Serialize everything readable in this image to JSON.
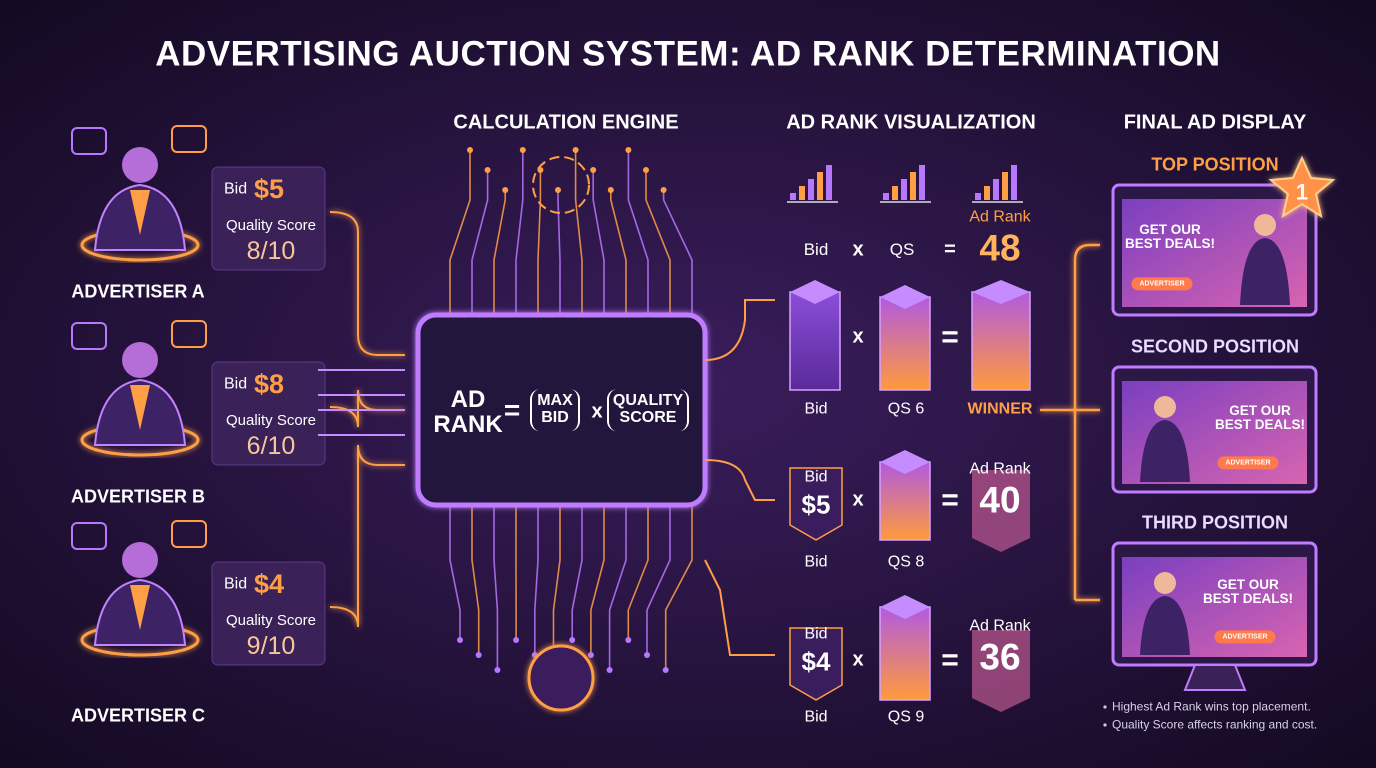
{
  "title": "ADVERTISING AUCTION SYSTEM: AD RANK DETERMINATION",
  "advertisers": [
    {
      "name": "ADVERTISER A",
      "bid_label": "Bid",
      "bid": "$5",
      "qs_label": "Quality Score",
      "qs": "8/10"
    },
    {
      "name": "ADVERTISER B",
      "bid_label": "Bid",
      "bid": "$8",
      "qs_label": "Quality Score",
      "qs": "6/10"
    },
    {
      "name": "ADVERTISER C",
      "bid_label": "Bid",
      "bid": "$4",
      "qs_label": "Quality Score",
      "qs": "9/10"
    }
  ],
  "engine": {
    "heading": "CALCULATION ENGINE",
    "formula": {
      "lhs": "AD RANK",
      "equals": "=",
      "term1": "MAX BID",
      "times": "x",
      "term2": "QUALITY SCORE"
    }
  },
  "visualization": {
    "heading": "AD RANK VISUALIZATION",
    "rows": [
      {
        "header": [
          "Bid",
          "x",
          "QS",
          "="
        ],
        "times": "x",
        "equals": "=",
        "rank_label": "Ad Rank",
        "rank": "48",
        "footer": [
          "Bid",
          "QS 6",
          "WINNER"
        ]
      },
      {
        "bid_label": "Bid",
        "bid": "$5",
        "times": "x",
        "equals": "=",
        "rank_label": "Ad Rank",
        "rank": "40",
        "footer": [
          "Bid",
          "QS 8"
        ]
      },
      {
        "bid_label": "Bid",
        "bid": "$4",
        "times": "x",
        "equals": "=",
        "rank_label": "Ad Rank",
        "rank": "36",
        "footer": [
          "Bid",
          "QS 9"
        ]
      }
    ]
  },
  "display": {
    "heading": "FINAL AD DISPLAY",
    "positions": [
      {
        "label": "TOP POSITION",
        "badge": "1",
        "headline": "GET OUR BEST DEALS!",
        "button": "ADVERTISER"
      },
      {
        "label": "SECOND POSITION",
        "headline": "GET OUR BEST DEALS!",
        "button": "ADVERTISER"
      },
      {
        "label": "THIRD POSITION",
        "headline": "GET OUR BEST DEALS!",
        "button": "ADVERTISER"
      }
    ],
    "notes": [
      "Highest Ad Rank wins top placement.",
      "Quality Score affects ranking and cost."
    ]
  }
}
